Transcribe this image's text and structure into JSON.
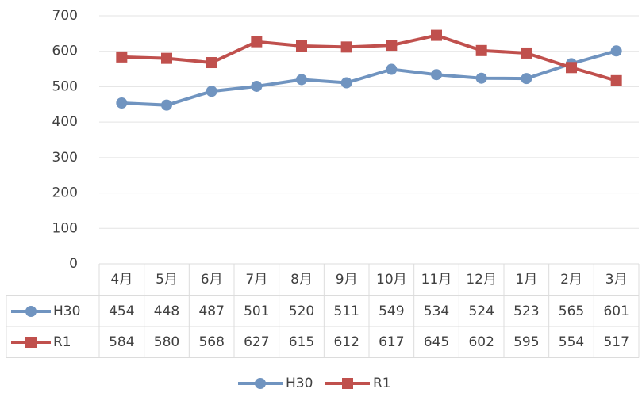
{
  "chart_data": {
    "type": "line",
    "categories": [
      "4月",
      "5月",
      "6月",
      "7月",
      "8月",
      "9月",
      "10月",
      "11月",
      "12月",
      "1月",
      "2月",
      "3月"
    ],
    "series": [
      {
        "name": "H30",
        "color": "#7094c0",
        "marker": "circle",
        "values": [
          454,
          448,
          487,
          501,
          520,
          511,
          549,
          534,
          524,
          523,
          565,
          601
        ]
      },
      {
        "name": "R1",
        "color": "#c0504d",
        "marker": "square",
        "values": [
          584,
          580,
          568,
          627,
          615,
          612,
          617,
          645,
          602,
          595,
          554,
          517
        ]
      }
    ],
    "ylim": [
      0,
      700
    ],
    "yticks": [
      0,
      100,
      200,
      300,
      400,
      500,
      600,
      700
    ],
    "grid": true
  }
}
